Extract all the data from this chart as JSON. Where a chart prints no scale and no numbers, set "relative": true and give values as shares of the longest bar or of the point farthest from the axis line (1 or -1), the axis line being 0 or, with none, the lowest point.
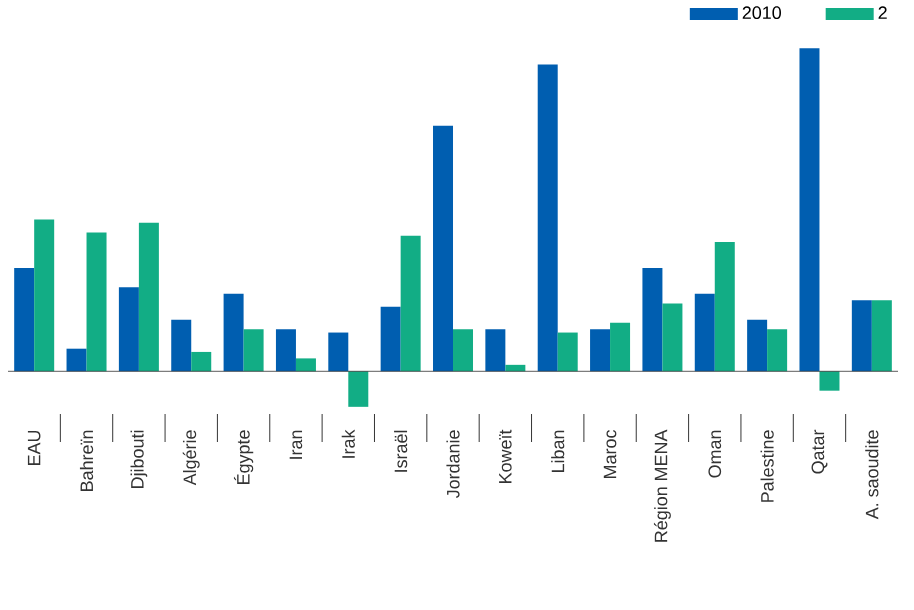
{
  "chart_data": {
    "type": "bar",
    "relative": true,
    "legend": "top right",
    "categories": [
      "EAU",
      "Bahreïn",
      "Djibouti",
      "Algérie",
      "Égypte",
      "Iran",
      "Irak",
      "Israël",
      "Jordanie",
      "Koweït",
      "Liban",
      "Maroc",
      "Région MENA",
      "Oman",
      "Palestine",
      "Qatar",
      "A. saoudite"
    ],
    "series": [
      {
        "name": "2010",
        "color": "#005eb0",
        "values": [
          0.32,
          0.07,
          0.26,
          0.16,
          0.24,
          0.13,
          0.12,
          0.2,
          0.76,
          0.13,
          0.95,
          0.13,
          0.32,
          0.24,
          0.16,
          1.0,
          0.22
        ]
      },
      {
        "name": "2",
        "color": "#12ad85",
        "values": [
          0.47,
          0.43,
          0.46,
          0.06,
          0.13,
          0.04,
          -0.11,
          0.42,
          0.13,
          0.02,
          0.12,
          0.15,
          0.21,
          0.4,
          0.13,
          -0.06,
          0.22
        ]
      }
    ]
  }
}
